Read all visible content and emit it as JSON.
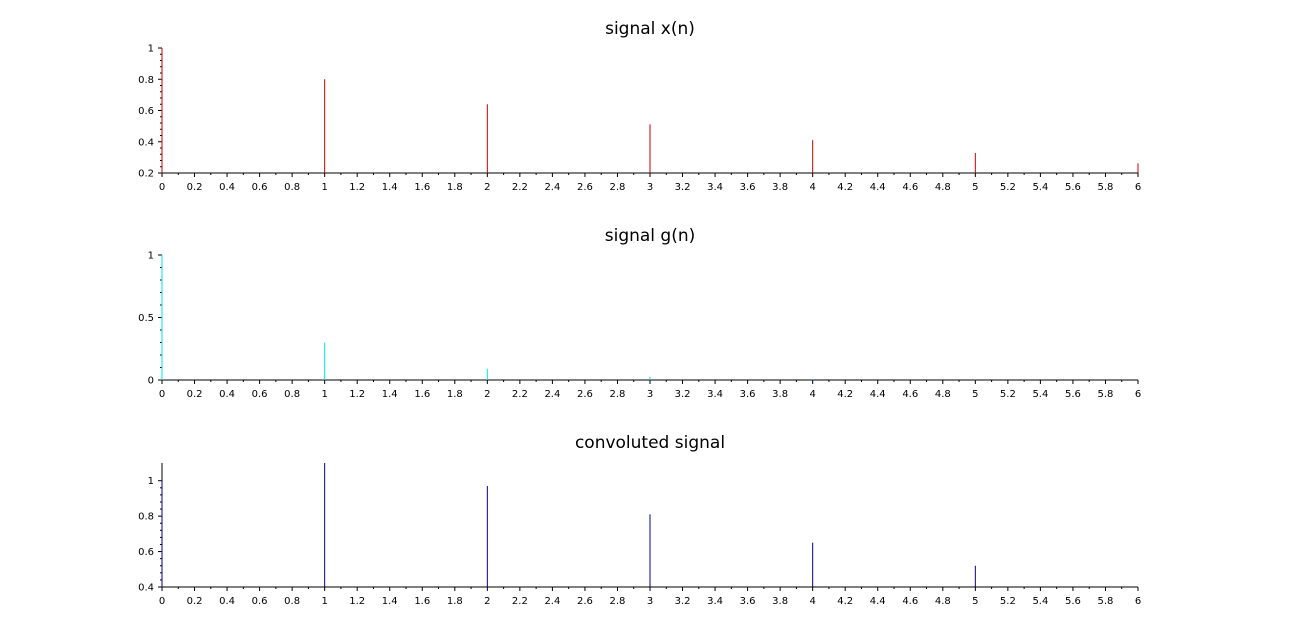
{
  "chart_data": [
    {
      "type": "bar",
      "title": "signal x(n)",
      "color": "#cc0000",
      "x": [
        0,
        1,
        2,
        3,
        4,
        5,
        6
      ],
      "values": [
        1.0,
        0.8,
        0.64,
        0.512,
        0.41,
        0.328,
        0.262
      ],
      "xlim": [
        0,
        6
      ],
      "ylim": [
        0.2,
        1.0
      ],
      "xticks": [
        "0",
        "0.2",
        "0.4",
        "0.6",
        "0.8",
        "1",
        "1.2",
        "1.4",
        "1.6",
        "1.8",
        "2",
        "2.2",
        "2.4",
        "2.6",
        "2.8",
        "3",
        "3.2",
        "3.4",
        "3.6",
        "3.8",
        "4",
        "4.2",
        "4.4",
        "4.6",
        "4.8",
        "5",
        "5.2",
        "5.4",
        "5.6",
        "5.8",
        "6"
      ],
      "yticks": [
        "0.2",
        "0.4",
        "0.6",
        "0.8",
        "1"
      ],
      "grid": false
    },
    {
      "type": "bar",
      "title": "signal g(n)",
      "color": "#00e5ee",
      "x": [
        0,
        1,
        2,
        3,
        4,
        5,
        6
      ],
      "values": [
        1.0,
        0.3,
        0.09,
        0.027,
        0.008,
        0.002,
        0.001
      ],
      "xlim": [
        0,
        6
      ],
      "ylim": [
        0,
        1.0
      ],
      "xticks": [
        "0",
        "0.2",
        "0.4",
        "0.6",
        "0.8",
        "1",
        "1.2",
        "1.4",
        "1.6",
        "1.8",
        "2",
        "2.2",
        "2.4",
        "2.6",
        "2.8",
        "3",
        "3.2",
        "3.4",
        "3.6",
        "3.8",
        "4",
        "4.2",
        "4.4",
        "4.6",
        "4.8",
        "5",
        "5.2",
        "5.4",
        "5.6",
        "5.8",
        "6"
      ],
      "yticks": [
        "0",
        "0.5",
        "1"
      ],
      "grid": false
    },
    {
      "type": "bar",
      "title": "convoluted signal",
      "color": "#00008b",
      "x": [
        0,
        1,
        2,
        3,
        4,
        5,
        6
      ],
      "values": [
        1.0,
        1.1,
        0.97,
        0.81,
        0.65,
        0.52,
        0.4
      ],
      "xlim": [
        0,
        6
      ],
      "ylim": [
        0.4,
        1.1
      ],
      "xticks": [
        "0",
        "0.2",
        "0.4",
        "0.6",
        "0.8",
        "1",
        "1.2",
        "1.4",
        "1.6",
        "1.8",
        "2",
        "2.2",
        "2.4",
        "2.6",
        "2.8",
        "3",
        "3.2",
        "3.4",
        "3.6",
        "3.8",
        "4",
        "4.2",
        "4.4",
        "4.6",
        "4.8",
        "5",
        "5.2",
        "5.4",
        "5.6",
        "5.8",
        "6"
      ],
      "yticks": [
        "0.4",
        "0.6",
        "0.8",
        "1"
      ],
      "grid": false
    }
  ]
}
